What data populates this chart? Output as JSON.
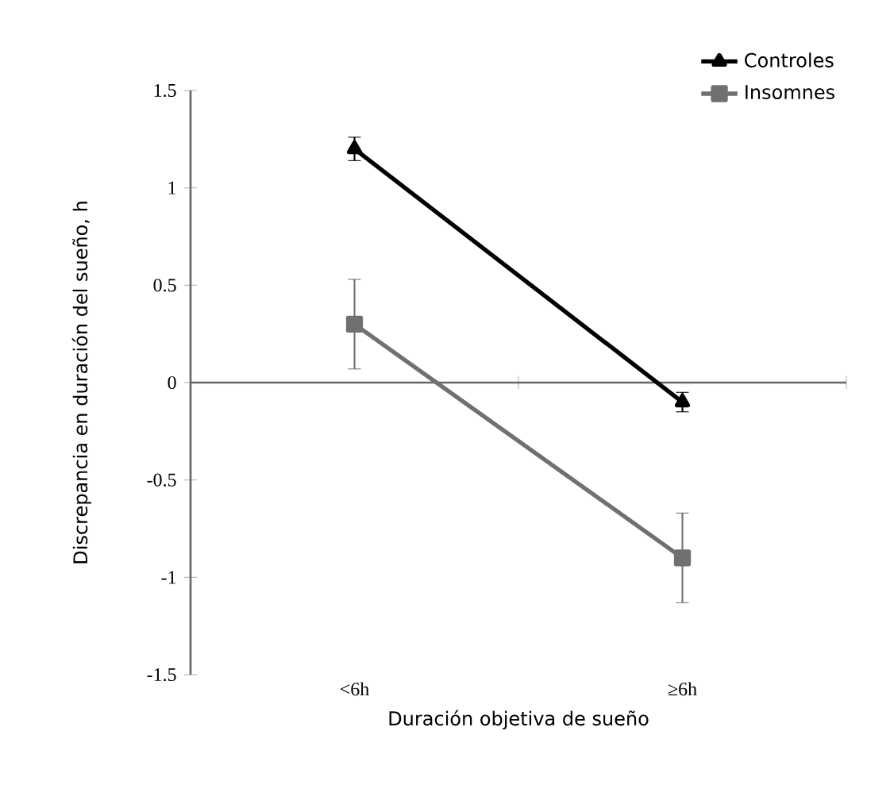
{
  "chart_data": {
    "type": "line",
    "xlabel": "Duración objetiva de sueño",
    "ylabel": "Discrepancia en duración del sueño, h",
    "categories": [
      "<6h",
      "≥6h"
    ],
    "series": [
      {
        "name": "Controles",
        "color": "#000000",
        "values": [
          1.2,
          -0.1
        ],
        "errors": [
          0.06,
          0.05
        ],
        "marker": "triangle"
      },
      {
        "name": "Insomnes",
        "color": "#707070",
        "values": [
          0.3,
          -0.9
        ],
        "errors": [
          0.23,
          0.23
        ],
        "marker": "square"
      }
    ],
    "ylim": [
      -1.5,
      1.5
    ],
    "yticks": [
      -1.5,
      -1,
      -0.5,
      0,
      0.5,
      1,
      1.5
    ],
    "legend": "top right",
    "line_style": "solid"
  }
}
